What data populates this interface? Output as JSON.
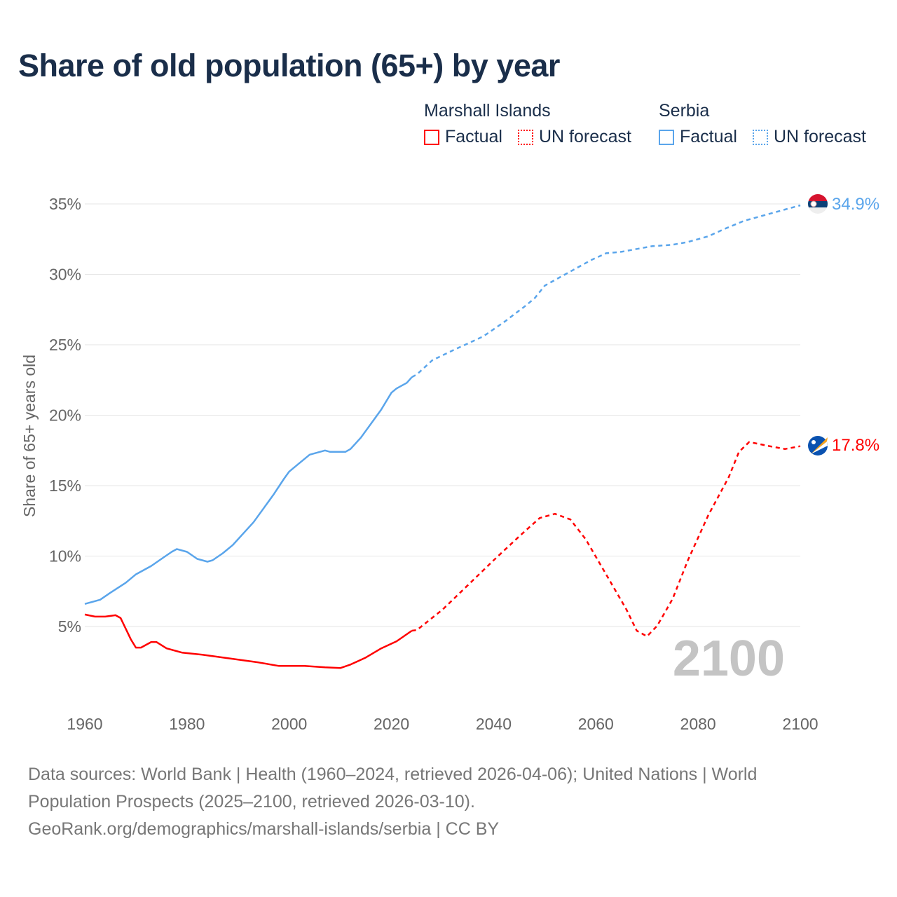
{
  "title": "Share of old population (65+) by year",
  "legend": [
    {
      "name": "Marshall Islands",
      "color": "#ff0000",
      "factual_label": "Factual",
      "forecast_label": "UN forecast"
    },
    {
      "name": "Serbia",
      "color": "#5aa5eb",
      "factual_label": "Factual",
      "forecast_label": "UN forecast"
    }
  ],
  "year_watermark": "2100",
  "footer": {
    "line1": "Data sources: World Bank | Health (1960–2024, retrieved 2026-04-06); United Nations | World",
    "line2": "Population Prospects (2025–2100, retrieved 2026-03-10).",
    "line3": "GeoRank.org/demographics/marshall-islands/serbia | CC BY"
  },
  "chart_data": {
    "type": "line",
    "title": "Share of old population (65+) by year",
    "xlabel": "",
    "ylabel": "Share of 65+ years old",
    "xlim": [
      1960,
      2100
    ],
    "ylim": [
      0,
      35
    ],
    "x_ticks": [
      1960,
      1980,
      2000,
      2020,
      2040,
      2060,
      2080,
      2100
    ],
    "x_tick_labels": [
      "1960",
      "1980",
      "2000",
      "2020",
      "2040",
      "2060",
      "2080",
      "2100"
    ],
    "y_ticks": [
      5,
      10,
      15,
      20,
      25,
      30,
      35
    ],
    "y_tick_labels": [
      "5%",
      "10%",
      "15%",
      "20%",
      "25%",
      "30%",
      "35%"
    ],
    "grid": true,
    "series": [
      {
        "name": "Serbia",
        "color": "#5aa5eb",
        "end_label": "34.9%",
        "factual": [
          [
            1960,
            6.6
          ],
          [
            1963,
            6.9
          ],
          [
            1965,
            7.4
          ],
          [
            1968,
            8.1
          ],
          [
            1970,
            8.7
          ],
          [
            1973,
            9.3
          ],
          [
            1975,
            9.8
          ],
          [
            1977,
            10.3
          ],
          [
            1978,
            10.5
          ],
          [
            1980,
            10.3
          ],
          [
            1982,
            9.8
          ],
          [
            1984,
            9.6
          ],
          [
            1985,
            9.7
          ],
          [
            1987,
            10.2
          ],
          [
            1989,
            10.8
          ],
          [
            1991,
            11.6
          ],
          [
            1993,
            12.4
          ],
          [
            1995,
            13.4
          ],
          [
            1997,
            14.4
          ],
          [
            1999,
            15.5
          ],
          [
            2000,
            16.0
          ],
          [
            2002,
            16.6
          ],
          [
            2004,
            17.2
          ],
          [
            2006,
            17.4
          ],
          [
            2007,
            17.5
          ],
          [
            2008,
            17.4
          ],
          [
            2011,
            17.4
          ],
          [
            2012,
            17.6
          ],
          [
            2014,
            18.4
          ],
          [
            2016,
            19.4
          ],
          [
            2018,
            20.4
          ],
          [
            2019,
            21.0
          ],
          [
            2020,
            21.6
          ],
          [
            2021,
            21.9
          ],
          [
            2023,
            22.3
          ],
          [
            2024,
            22.7
          ]
        ],
        "forecast": [
          [
            2024,
            22.7
          ],
          [
            2025,
            22.9
          ],
          [
            2028,
            23.9
          ],
          [
            2032,
            24.6
          ],
          [
            2035,
            25.1
          ],
          [
            2038,
            25.6
          ],
          [
            2042,
            26.6
          ],
          [
            2046,
            27.7
          ],
          [
            2048,
            28.3
          ],
          [
            2050,
            29.2
          ],
          [
            2053,
            29.8
          ],
          [
            2056,
            30.4
          ],
          [
            2059,
            31.0
          ],
          [
            2062,
            31.5
          ],
          [
            2065,
            31.6
          ],
          [
            2068,
            31.8
          ],
          [
            2071,
            32.0
          ],
          [
            2075,
            32.1
          ],
          [
            2078,
            32.3
          ],
          [
            2082,
            32.7
          ],
          [
            2085,
            33.2
          ],
          [
            2089,
            33.8
          ],
          [
            2093,
            34.2
          ],
          [
            2097,
            34.6
          ],
          [
            2100,
            34.9
          ]
        ]
      },
      {
        "name": "Marshall Islands",
        "color": "#ff0000",
        "end_label": "17.8%",
        "factual": [
          [
            1960,
            5.85
          ],
          [
            1962,
            5.7
          ],
          [
            1964,
            5.7
          ],
          [
            1966,
            5.8
          ],
          [
            1967,
            5.6
          ],
          [
            1969,
            4.1
          ],
          [
            1970,
            3.5
          ],
          [
            1971,
            3.5
          ],
          [
            1973,
            3.9
          ],
          [
            1974,
            3.9
          ],
          [
            1976,
            3.45
          ],
          [
            1979,
            3.15
          ],
          [
            1983,
            3.0
          ],
          [
            1987,
            2.8
          ],
          [
            1994,
            2.45
          ],
          [
            1998,
            2.2
          ],
          [
            2003,
            2.2
          ],
          [
            2007,
            2.1
          ],
          [
            2010,
            2.05
          ],
          [
            2012,
            2.3
          ],
          [
            2015,
            2.8
          ],
          [
            2018,
            3.45
          ],
          [
            2021,
            3.95
          ],
          [
            2024,
            4.7
          ]
        ],
        "forecast": [
          [
            2024,
            4.7
          ],
          [
            2025,
            4.75
          ],
          [
            2030,
            6.2
          ],
          [
            2035,
            7.95
          ],
          [
            2040,
            9.7
          ],
          [
            2045,
            11.4
          ],
          [
            2049,
            12.7
          ],
          [
            2052,
            13.0
          ],
          [
            2055,
            12.6
          ],
          [
            2058,
            11.2
          ],
          [
            2062,
            8.7
          ],
          [
            2066,
            6.2
          ],
          [
            2068,
            4.7
          ],
          [
            2070,
            4.3
          ],
          [
            2072,
            5.05
          ],
          [
            2075,
            6.95
          ],
          [
            2078,
            9.7
          ],
          [
            2082,
            12.9
          ],
          [
            2086,
            15.6
          ],
          [
            2088,
            17.4
          ],
          [
            2090,
            18.1
          ],
          [
            2094,
            17.8
          ],
          [
            2097,
            17.6
          ],
          [
            2100,
            17.8
          ]
        ]
      }
    ]
  }
}
